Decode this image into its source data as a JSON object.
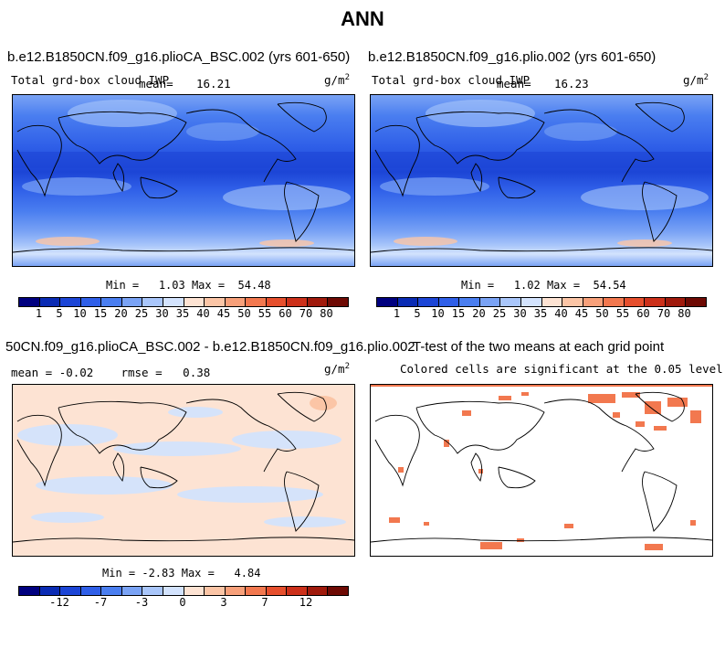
{
  "title": "ANN",
  "panels": {
    "tl": {
      "title": "b.e12.B1850CN.f09_g16.plioCA_BSC.002 (yrs 601-650)",
      "var": "Total grd-box cloud IWP",
      "mean_label": "mean=",
      "mean": "16.21",
      "units": "g/m",
      "units_sup": "2",
      "min_label": "Min =",
      "min": "1.03",
      "max_label": "Max =",
      "max": "54.48"
    },
    "tr": {
      "title": "b.e12.B1850CN.f09_g16.plio.002 (yrs 601-650)",
      "var": "Total grd-box cloud IWP",
      "mean_label": "mean=",
      "mean": "16.23",
      "units": "g/m",
      "units_sup": "2",
      "min_label": "Min =",
      "min": "1.02",
      "max_label": "Max =",
      "max": "54.54"
    },
    "bl": {
      "title": "50CN.f09_g16.plioCA_BSC.002 - b.e12.B1850CN.f09_g16.plio.002",
      "mean_label": "mean =",
      "mean": "-0.02",
      "rmse_label": "rmse =",
      "rmse": "0.38",
      "units": "g/m",
      "units_sup": "2",
      "min_label": "Min =",
      "min": "-2.83",
      "max_label": "Max =",
      "max": "4.84"
    },
    "br": {
      "title": "T-test of the two means at each grid point",
      "subtitle": "Colored cells are significant at the 0.05 level"
    }
  },
  "colorbar_abs": {
    "colors": [
      "#00007f",
      "#0a2bb4",
      "#1c45d6",
      "#2f5fe8",
      "#4a7ef0",
      "#7aa3f5",
      "#a9c6fa",
      "#d3e3fd",
      "#fde3d3",
      "#fbc5a6",
      "#f7a07a",
      "#f2784f",
      "#e64f2d",
      "#cc301a",
      "#a01a0c",
      "#6e0a04"
    ],
    "labels": [
      "1",
      "5",
      "10",
      "15",
      "20",
      "25",
      "30",
      "35",
      "40",
      "45",
      "50",
      "55",
      "60",
      "70",
      "80"
    ]
  },
  "colorbar_diff": {
    "colors": [
      "#00007f",
      "#0a2bb4",
      "#1c45d6",
      "#2f5fe8",
      "#4a7ef0",
      "#7aa3f5",
      "#a9c6fa",
      "#d3e3fd",
      "#fde3d3",
      "#fbc5a6",
      "#f7a07a",
      "#f2784f",
      "#e64f2d",
      "#cc301a",
      "#a01a0c",
      "#6e0a04"
    ],
    "labels": [
      "-12",
      "-7",
      "-3",
      "0",
      "3",
      "7",
      "12"
    ]
  }
}
